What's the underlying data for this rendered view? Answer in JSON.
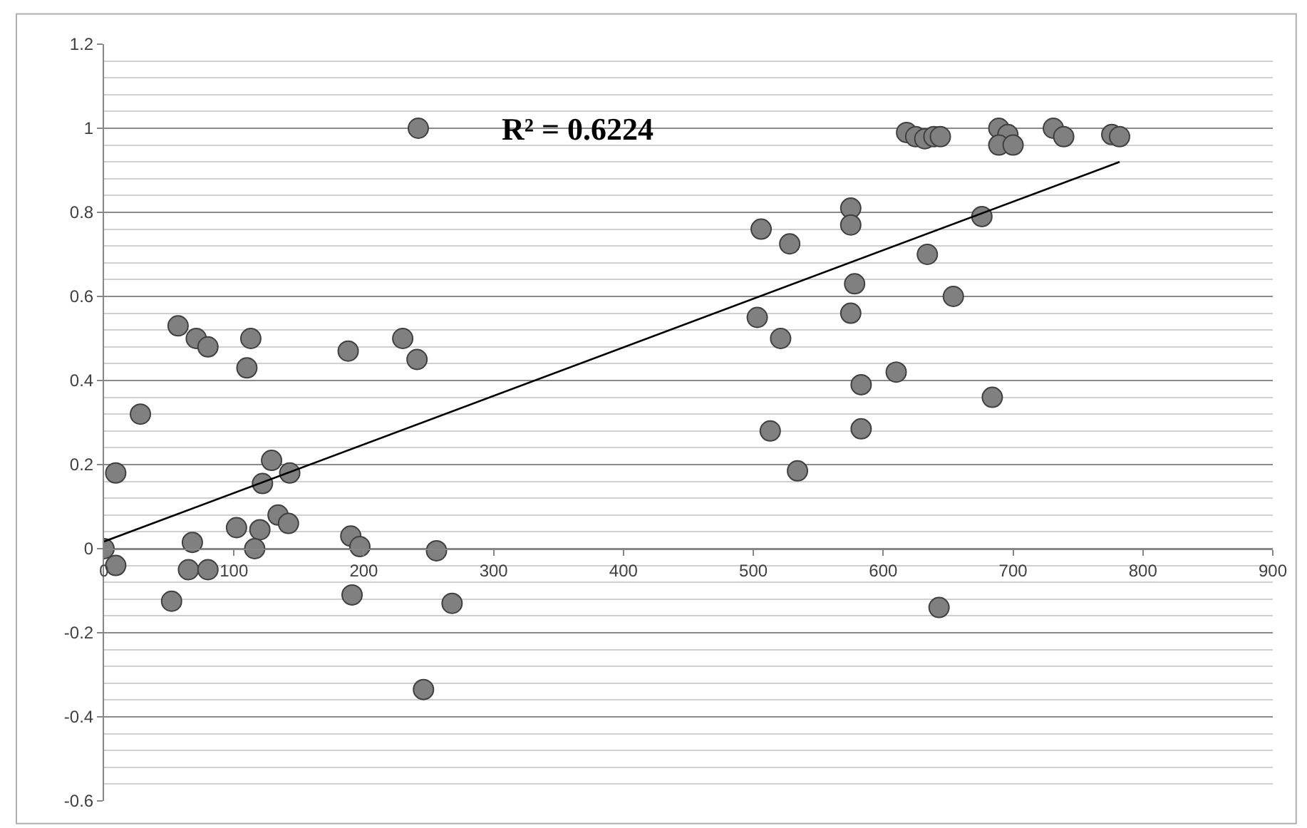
{
  "chart_data": {
    "type": "scatter",
    "annotations": [
      "R² = 0.6224"
    ],
    "series": [
      {
        "marker": "circle",
        "color": "#808080",
        "x": [
          0,
          9,
          9,
          28,
          57,
          71,
          80,
          113,
          110,
          188,
          230,
          241,
          129,
          143,
          122,
          134,
          142,
          102,
          120,
          116,
          68,
          65,
          80,
          52,
          190,
          197,
          256,
          191,
          268,
          246,
          242,
          618,
          625,
          632,
          639,
          644,
          689,
          696,
          689,
          700,
          731,
          739,
          776,
          782,
          575,
          575,
          506,
          528,
          676,
          634,
          578,
          654,
          503,
          575,
          521,
          610,
          583,
          684,
          513,
          583,
          534,
          643
        ],
        "values": [
          0,
          -0.04,
          0.18,
          0.32,
          0.53,
          0.5,
          0.48,
          0.5,
          0.43,
          0.47,
          0.5,
          0.45,
          0.21,
          0.18,
          0.155,
          0.08,
          0.06,
          0.05,
          0.045,
          0,
          0.015,
          -0.05,
          -0.05,
          -0.125,
          0.03,
          0.005,
          -0.005,
          -0.11,
          -0.13,
          -0.335,
          1,
          0.99,
          0.98,
          0.975,
          0.98,
          0.98,
          1,
          0.985,
          0.96,
          0.96,
          1,
          0.98,
          0.985,
          0.98,
          0.81,
          0.77,
          0.76,
          0.725,
          0.79,
          0.7,
          0.63,
          0.6,
          0.55,
          0.56,
          0.5,
          0.42,
          0.39,
          0.36,
          0.28,
          0.285,
          0.185,
          -0.14
        ]
      },
      {
        "type": "line",
        "marker": "none",
        "color": "#000000",
        "x": [
          0,
          782
        ],
        "values": [
          0.017,
          0.92
        ]
      }
    ],
    "xlim": [
      0,
      900
    ],
    "xticks": [
      0,
      100,
      200,
      300,
      400,
      500,
      600,
      700,
      800,
      900
    ],
    "ylim": [
      -0.6,
      1.2
    ],
    "yticks": [
      -0.6,
      -0.4,
      -0.2,
      0,
      0.2,
      0.4,
      0.6,
      0.8,
      1,
      1.2
    ],
    "grid": "y"
  }
}
